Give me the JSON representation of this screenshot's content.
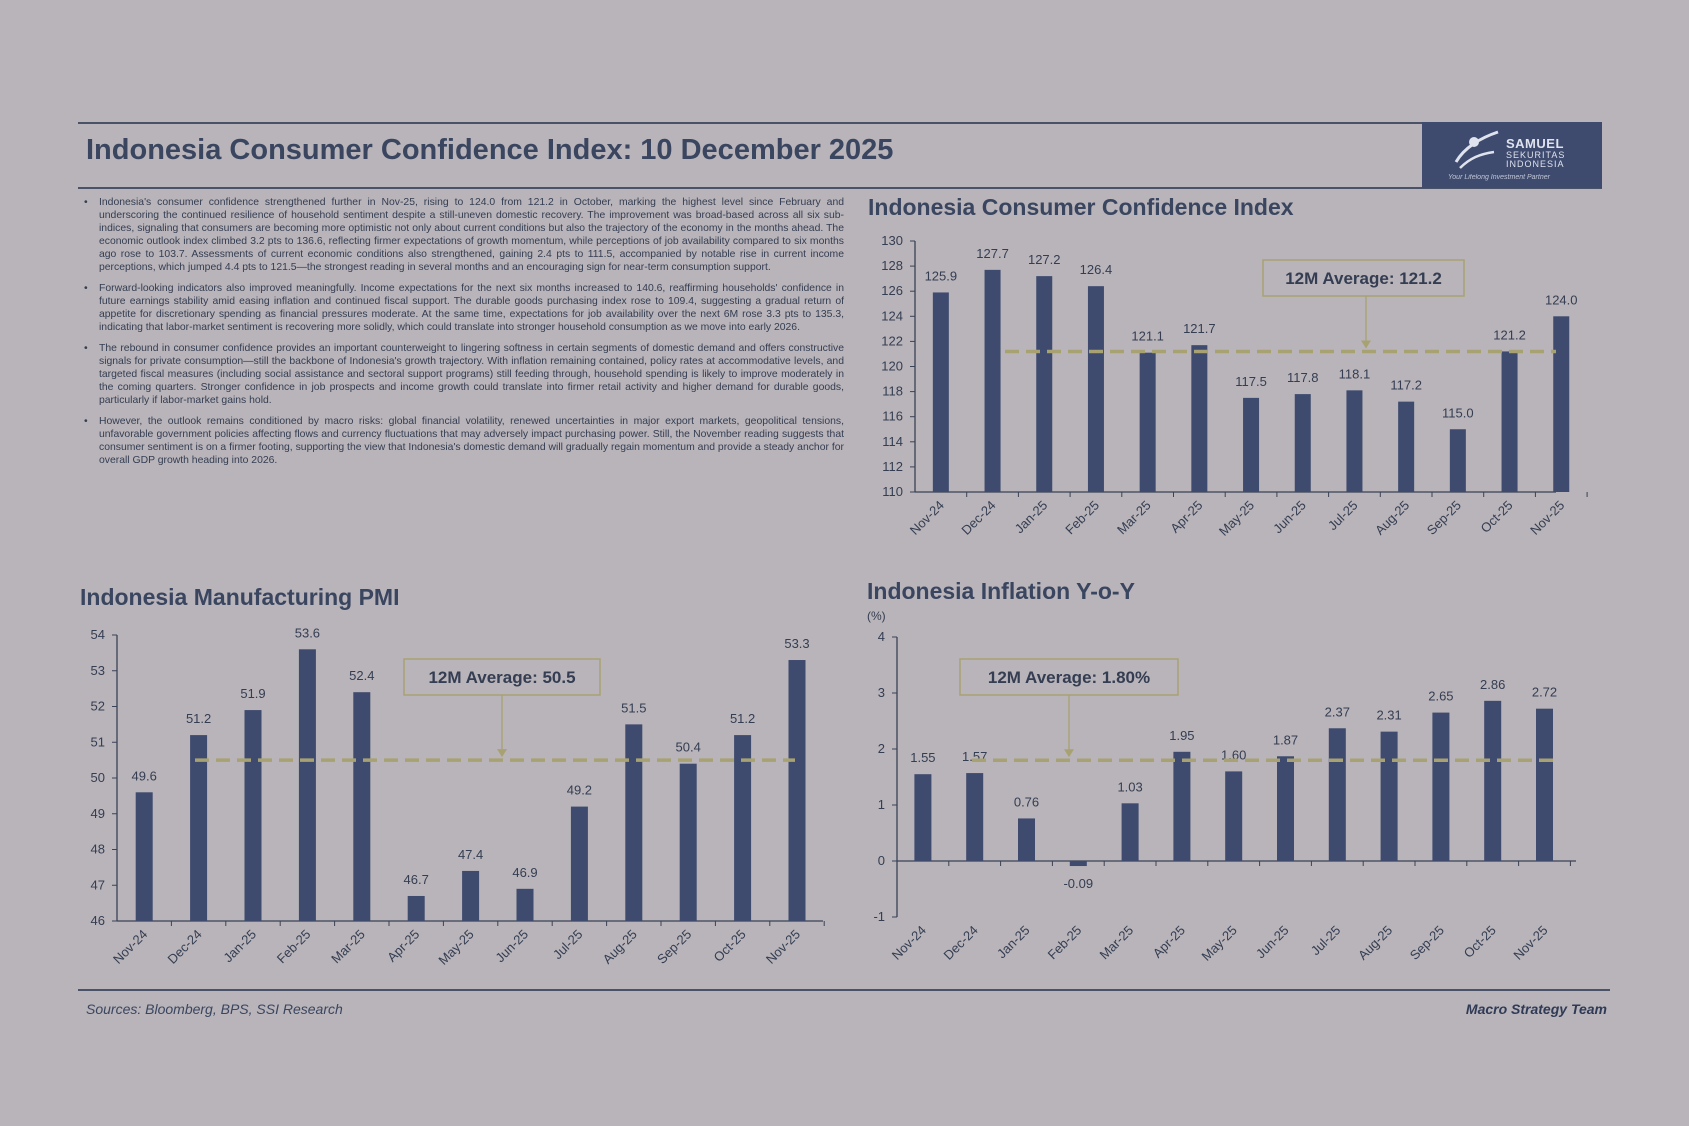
{
  "title": "Indonesia Consumer Confidence Index: 10 December 2025",
  "logo": {
    "line1": "SAMUEL",
    "line2": "SEKURITAS",
    "line3": "INDONESIA",
    "tagline": "Your Lifelong Investment Partner"
  },
  "bullets": [
    "Indonesia's consumer confidence strengthened further in Nov-25, rising to 124.0 from 121.2 in October, marking the highest level since February and underscoring the continued resilience of household sentiment despite a still-uneven domestic recovery. The improvement was broad-based across all six sub-indices, signaling that consumers are becoming more optimistic not only about current conditions but also the trajectory of the economy in the months ahead. The economic outlook index climbed 3.2 pts to 136.6, reflecting firmer expectations of growth momentum, while perceptions of job availability compared to six months ago rose to 103.7. Assessments of current economic conditions also strengthened, gaining 2.4 pts to 111.5, accompanied by notable rise in current income perceptions, which jumped 4.4 pts to 121.5—the strongest reading in several months and an encouraging sign for near-term consumption support.",
    "Forward-looking indicators also improved meaningfully. Income expectations for the next six months increased to 140.6, reaffirming households' confidence in future earnings stability amid easing inflation and continued fiscal support. The durable goods purchasing index rose to 109.4, suggesting a gradual return of appetite for discretionary spending as financial pressures moderate. At the same time, expectations for job availability over the next 6M rose 3.3 pts to 135.3, indicating that labor-market sentiment is recovering more solidly, which could translate into stronger household consumption as we move into early 2026.",
    "The rebound in consumer confidence provides an important counterweight to lingering softness in certain segments of domestic demand and offers constructive signals for private consumption—still the backbone of Indonesia's growth trajectory. With inflation remaining contained, policy rates at accommodative levels, and targeted fiscal measures (including social assistance and sectoral support programs) still feeding through, household spending is likely to improve moderately in the coming quarters. Stronger confidence in job prospects and income growth could translate into firmer retail activity and higher demand for durable goods, particularly if labor-market gains hold.",
    "However, the outlook remains conditioned by macro risks: global financial volatility, renewed uncertainties in major export markets, geopolitical tensions, unfavorable government policies affecting flows and currency fluctuations that may adversely impact purchasing power. Still, the November reading suggests that consumer sentiment is on a firmer footing, supporting the view that Indonesia's domestic demand will gradually regain momentum and provide a steady anchor for overall GDP growth heading into 2026."
  ],
  "footer": {
    "sources": "Sources: Bloomberg, BPS, SSI Research",
    "team": "Macro Strategy Team"
  },
  "colors": {
    "bar": "#3e4a6e",
    "average_line": "#a8a272",
    "background": "#b8b4b9"
  },
  "chart_data": [
    {
      "id": "cci",
      "type": "bar",
      "title": "Indonesia Consumer Confidence Index",
      "categories": [
        "Nov-24",
        "Dec-24",
        "Jan-25",
        "Feb-25",
        "Mar-25",
        "Apr-25",
        "May-25",
        "Jun-25",
        "Jul-25",
        "Aug-25",
        "Sep-25",
        "Oct-25",
        "Nov-25"
      ],
      "values": [
        125.9,
        127.7,
        127.2,
        126.4,
        121.1,
        121.7,
        117.5,
        117.8,
        118.1,
        117.2,
        115.0,
        121.2,
        124.0
      ],
      "labels": [
        "125.9",
        "127.7",
        "127.2",
        "126.4",
        "121.1",
        "121.7",
        "117.5",
        "117.8",
        "118.1",
        "117.2",
        "115.0",
        "121.2",
        "124.0"
      ],
      "ylim": [
        110,
        130
      ],
      "yticks": [
        110,
        112,
        114,
        116,
        118,
        120,
        122,
        124,
        126,
        128,
        130
      ],
      "average": 121.2,
      "average_label": "12M Average: 121.2",
      "unit_label": ""
    },
    {
      "id": "pmi",
      "type": "bar",
      "title": "Indonesia Manufacturing PMI",
      "categories": [
        "Nov-24",
        "Dec-24",
        "Jan-25",
        "Feb-25",
        "Mar-25",
        "Apr-25",
        "May-25",
        "Jun-25",
        "Jul-25",
        "Aug-25",
        "Sep-25",
        "Oct-25",
        "Nov-25"
      ],
      "values": [
        49.6,
        51.2,
        51.9,
        53.6,
        52.4,
        46.7,
        47.4,
        46.9,
        49.2,
        51.5,
        50.4,
        51.2,
        53.3
      ],
      "labels": [
        "49.6",
        "51.2",
        "51.9",
        "53.6",
        "52.4",
        "46.7",
        "47.4",
        "46.9",
        "49.2",
        "51.5",
        "50.4",
        "51.2",
        "53.3"
      ],
      "ylim": [
        46,
        54
      ],
      "yticks": [
        46,
        47,
        48,
        49,
        50,
        51,
        52,
        53,
        54
      ],
      "average": 50.5,
      "average_label": "12M Average: 50.5",
      "unit_label": ""
    },
    {
      "id": "inflation",
      "type": "bar",
      "title": "Indonesia Inflation Y-o-Y",
      "categories": [
        "Nov-24",
        "Dec-24",
        "Jan-25",
        "Feb-25",
        "Mar-25",
        "Apr-25",
        "May-25",
        "Jun-25",
        "Jul-25",
        "Aug-25",
        "Sep-25",
        "Oct-25",
        "Nov-25"
      ],
      "values": [
        1.55,
        1.57,
        0.76,
        -0.09,
        1.03,
        1.95,
        1.6,
        1.87,
        2.37,
        2.31,
        2.65,
        2.86,
        2.72
      ],
      "labels": [
        "1.55",
        "1.57",
        "0.76",
        "-0.09",
        "1.03",
        "1.95",
        "1.60",
        "1.87",
        "2.37",
        "2.31",
        "2.65",
        "2.86",
        "2.72"
      ],
      "ylim": [
        -1,
        4
      ],
      "yticks": [
        -1,
        0,
        1,
        2,
        3,
        4
      ],
      "average": 1.8,
      "average_label": "12M Average: 1.80%",
      "unit_label": "(%)"
    }
  ]
}
